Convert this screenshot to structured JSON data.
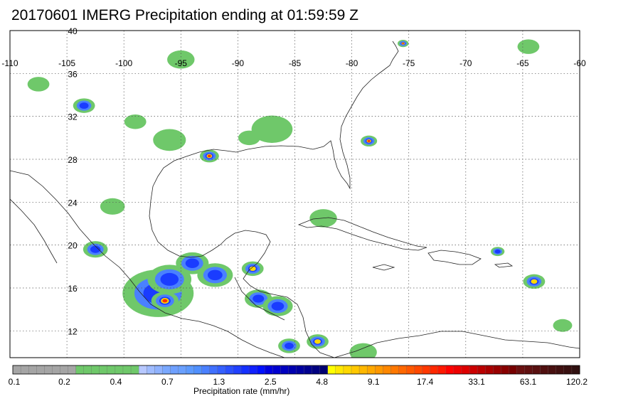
{
  "title": "20170601 IMERG Precipitation ending at 01:59:59 Z",
  "map": {
    "lon_range": [
      -110,
      -60
    ],
    "lat_range": [
      9.5,
      40
    ],
    "lon_ticks": [
      "-110",
      "-105",
      "-100",
      "-95",
      "-90",
      "-85",
      "-80",
      "-75",
      "-70",
      "-65",
      "-60"
    ],
    "lat_ticks": [
      "40",
      "36",
      "32",
      "28",
      "24",
      "20",
      "16",
      "12"
    ],
    "grid": true
  },
  "colorbar": {
    "title": "Precipitation rate (mm/hr)",
    "tick_labels": [
      "0.1",
      "0.2",
      "0.4",
      "0.7",
      "1.3",
      "2.5",
      "4.8",
      "9.1",
      "17.4",
      "33.1",
      "63.1",
      "120.2"
    ],
    "colors": [
      "#a5a5a5",
      "#a5a5a5",
      "#a5a5a5",
      "#a5a5a5",
      "#a5a5a5",
      "#a5a5a5",
      "#a5a5a5",
      "#a5a5a5",
      "#6fc86a",
      "#6fc86a",
      "#6fc86a",
      "#6fc86a",
      "#6fc86a",
      "#6fc86a",
      "#6fc86a",
      "#6fc86a",
      "#b7c8ff",
      "#a0bcff",
      "#8fb2ff",
      "#7aa8ff",
      "#6fa0ff",
      "#6aa0ff",
      "#5c9aff",
      "#5090ff",
      "#4a80ff",
      "#4070ff",
      "#3560ff",
      "#2a50ff",
      "#2040ff",
      "#1530ff",
      "#1020ff",
      "#0010ff",
      "#0000e0",
      "#0000d0",
      "#0000c0",
      "#0000b0",
      "#0000a0",
      "#000090",
      "#000080",
      "#000070",
      "#ffff00",
      "#ffe800",
      "#ffd800",
      "#ffc800",
      "#ffb800",
      "#ffa800",
      "#ff9800",
      "#ff8800",
      "#ff7800",
      "#ff6800",
      "#ff5800",
      "#ff4800",
      "#ff3800",
      "#ff2800",
      "#ff1800",
      "#ff0000",
      "#ee0000",
      "#dd0000",
      "#cc0000",
      "#bb0000",
      "#aa0000",
      "#990000",
      "#880000",
      "#770000",
      "#6a1010",
      "#601010",
      "#581010",
      "#501010",
      "#481010",
      "#401010",
      "#381010",
      "#301010"
    ]
  },
  "rain_cells": [
    {
      "lon": -97,
      "lat": 15.5,
      "r": 2.6,
      "level": "medium"
    },
    {
      "lon": -96.4,
      "lat": 14.8,
      "r": 1.0,
      "level": "extreme"
    },
    {
      "lon": -96,
      "lat": 16.8,
      "r": 1.6,
      "level": "medium"
    },
    {
      "lon": -94,
      "lat": 18.3,
      "r": 1.2,
      "level": "medium"
    },
    {
      "lon": -92,
      "lat": 17.2,
      "r": 1.3,
      "level": "medium"
    },
    {
      "lon": -88.7,
      "lat": 17.8,
      "r": 0.8,
      "level": "high"
    },
    {
      "lon": -88.2,
      "lat": 15,
      "r": 1.0,
      "level": "medium"
    },
    {
      "lon": -86.5,
      "lat": 14.3,
      "r": 1.1,
      "level": "medium"
    },
    {
      "lon": -83,
      "lat": 11,
      "r": 0.8,
      "level": "high"
    },
    {
      "lon": -92.5,
      "lat": 28.3,
      "r": 0.7,
      "level": "extreme"
    },
    {
      "lon": -78.5,
      "lat": 29.7,
      "r": 0.6,
      "level": "extreme"
    },
    {
      "lon": -75.5,
      "lat": 38.8,
      "r": 0.4,
      "level": "extreme"
    },
    {
      "lon": -64,
      "lat": 16.6,
      "r": 0.8,
      "level": "high"
    },
    {
      "lon": -67.2,
      "lat": 19.4,
      "r": 0.5,
      "level": "medium"
    },
    {
      "lon": -95,
      "lat": 37.3,
      "r": 1.0,
      "level": "low"
    },
    {
      "lon": -103.5,
      "lat": 33,
      "r": 0.8,
      "level": "medium"
    },
    {
      "lon": -96,
      "lat": 29.8,
      "r": 1.2,
      "level": "low"
    },
    {
      "lon": -87,
      "lat": 30.8,
      "r": 1.5,
      "level": "low"
    },
    {
      "lon": -101,
      "lat": 23.6,
      "r": 0.9,
      "level": "low"
    },
    {
      "lon": -102.5,
      "lat": 19.6,
      "r": 0.9,
      "level": "medium"
    },
    {
      "lon": -82.5,
      "lat": 22.5,
      "r": 1.0,
      "level": "low"
    },
    {
      "lon": -64.5,
      "lat": 38.5,
      "r": 0.8,
      "level": "low"
    },
    {
      "lon": -107.5,
      "lat": 35,
      "r": 0.8,
      "level": "low"
    },
    {
      "lon": -99,
      "lat": 31.5,
      "r": 0.8,
      "level": "low"
    },
    {
      "lon": -89,
      "lat": 30,
      "r": 0.8,
      "level": "low"
    },
    {
      "lon": -79,
      "lat": 10,
      "r": 1.0,
      "level": "low"
    },
    {
      "lon": -85.5,
      "lat": 10.6,
      "r": 0.8,
      "level": "medium"
    },
    {
      "lon": -61.5,
      "lat": 12.5,
      "r": 0.7,
      "level": "low"
    }
  ],
  "level_colors": {
    "low": "#6fc86a",
    "medium": "#1a3cff",
    "high": "#ffd800",
    "extreme": "#ff3000"
  }
}
